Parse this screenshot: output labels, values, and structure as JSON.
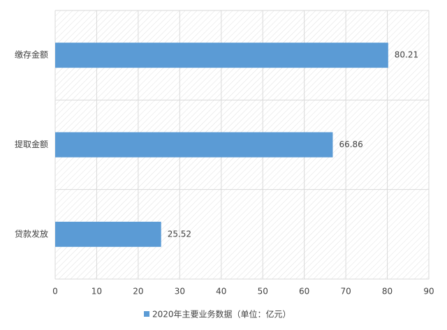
{
  "chart_data": {
    "type": "hbar",
    "categories": [
      "缴存金额",
      "提取金额",
      "贷款发放"
    ],
    "series": [
      {
        "name": "2020年主要业务数据（单位：亿元）",
        "color": "#5b9bd5",
        "values": [
          80.21,
          66.86,
          25.52
        ]
      }
    ],
    "xlim": [
      0,
      90
    ],
    "xticks": [
      0,
      10,
      20,
      30,
      40,
      50,
      60,
      70,
      80,
      90
    ],
    "grid": true,
    "legend": "bottom"
  }
}
